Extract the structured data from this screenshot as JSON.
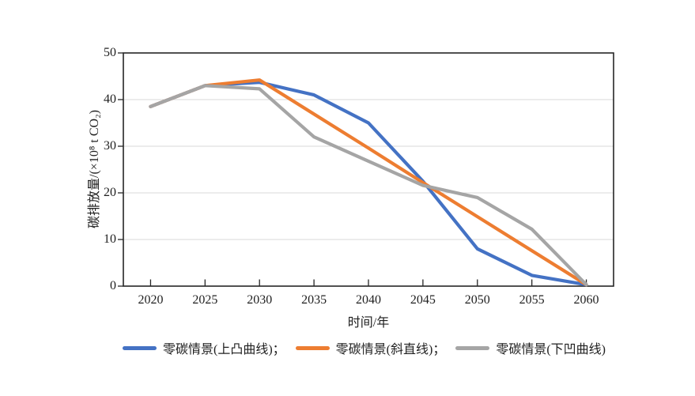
{
  "chart_data": {
    "type": "line",
    "title": "",
    "xlabel": "时间/年",
    "ylabel": "碳排放量/(×10⁸ t CO₂)",
    "categories": [
      "2020",
      "2025",
      "2030",
      "2035",
      "2040",
      "2045",
      "2050",
      "2055",
      "2060"
    ],
    "ylim": [
      0,
      50
    ],
    "yticks": [
      0,
      10,
      20,
      30,
      40,
      50
    ],
    "grid": "horizontal",
    "legend_position": "bottom",
    "axis_color": "#262626",
    "grid_color": "#d9d9d9",
    "text_color": "#1f1f1f",
    "series": [
      {
        "key": "convex",
        "name": "零碳情景(上凸曲线)；",
        "color": "#4472C4",
        "values": [
          38.5,
          43,
          43.7,
          41,
          35,
          22.5,
          8,
          2.3,
          0.3
        ]
      },
      {
        "key": "straight",
        "name": "零碳情景(斜直线)；",
        "color": "#ED7D31",
        "values": [
          38.5,
          43,
          44.2,
          36.9,
          29.6,
          22.2,
          14.9,
          7.6,
          0.3
        ]
      },
      {
        "key": "concave",
        "name": "零碳情景(下凹曲线)",
        "color": "#A5A5A5",
        "values": [
          38.5,
          43,
          42.3,
          32,
          26.8,
          21.6,
          19,
          12.2,
          0.3
        ]
      }
    ]
  }
}
